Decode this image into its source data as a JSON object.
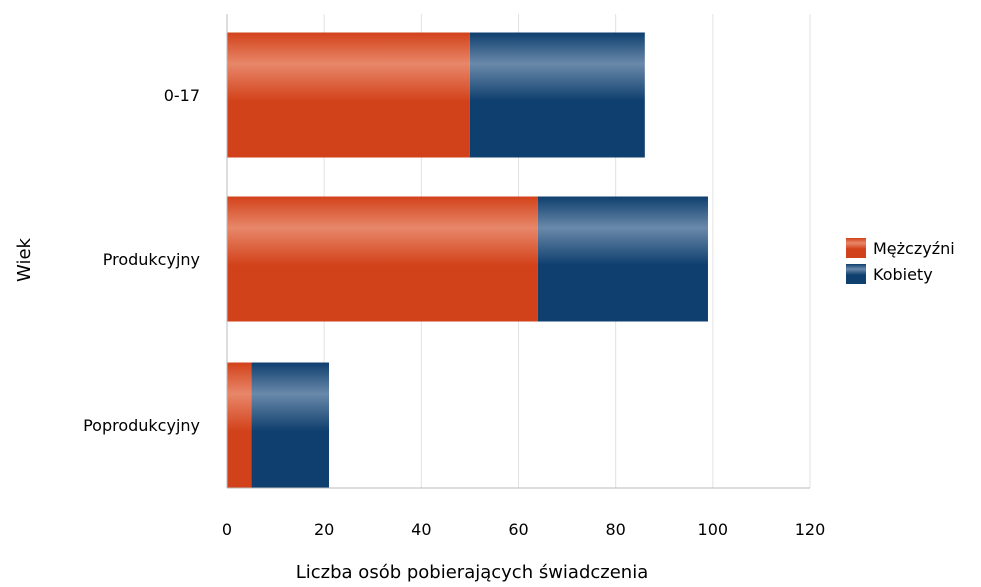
{
  "chart_data": {
    "type": "bar",
    "orientation": "horizontal",
    "stacked": true,
    "categories": [
      "0-17",
      "Produkcyjny",
      "Poprodukcyjny"
    ],
    "series": [
      {
        "name": "Mężczyźni",
        "values": [
          50,
          64,
          5
        ],
        "color": "#d2421a"
      },
      {
        "name": "Kobiety",
        "values": [
          36,
          35,
          16
        ],
        "color": "#0e3f6e"
      }
    ],
    "xlabel": "Liczba osób pobierających świadczenia",
    "ylabel": "Wiek",
    "xlim": [
      0,
      120
    ],
    "xticks": [
      0,
      20,
      40,
      60,
      80,
      100,
      120
    ],
    "grid": true,
    "legend_position": "right"
  }
}
